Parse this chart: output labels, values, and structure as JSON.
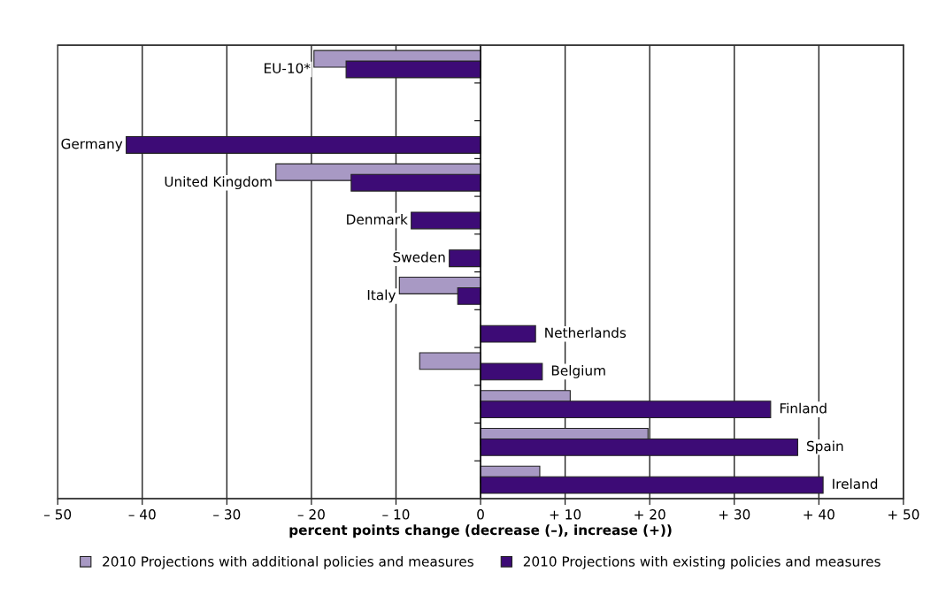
{
  "chart_data": {
    "type": "bar",
    "orientation": "horizontal",
    "categories": [
      "EU-10*",
      null,
      "Germany",
      "United Kingdom",
      "Denmark",
      "Sweden",
      "Italy",
      "Netherlands",
      "Belgium",
      "Finland",
      "Spain",
      "Ireland"
    ],
    "series": [
      {
        "name": "2010 Projections with additional policies and measures",
        "color": "#a899c4",
        "values": [
          -19.7,
          null,
          null,
          -24.2,
          null,
          null,
          -9.6,
          null,
          -7.2,
          10.6,
          19.8,
          7.0
        ]
      },
      {
        "name": "2010 Projections with existing policies and measures",
        "color": "#3d0b76",
        "values": [
          -15.9,
          null,
          -41.9,
          -15.3,
          -8.2,
          -3.7,
          -2.7,
          6.5,
          7.3,
          34.3,
          37.5,
          40.5
        ]
      }
    ],
    "xlim": [
      -50,
      50
    ],
    "xticks": [
      {
        "value": -50,
        "label": "– 50"
      },
      {
        "value": -40,
        "label": "– 40"
      },
      {
        "value": -30,
        "label": "– 30"
      },
      {
        "value": -20,
        "label": "– 20"
      },
      {
        "value": -10,
        "label": "– 10"
      },
      0,
      {
        "value": 10,
        "label": "+ 10"
      },
      {
        "value": 20,
        "label": "+ 20"
      },
      {
        "value": 30,
        "label": "+ 30"
      },
      {
        "value": 40,
        "label": "+ 40"
      },
      {
        "value": 50,
        "label": "+ 50"
      }
    ],
    "xlabel": "percent points change (decrease (–), increase (+))",
    "grid": "x",
    "legend": "bottom"
  }
}
